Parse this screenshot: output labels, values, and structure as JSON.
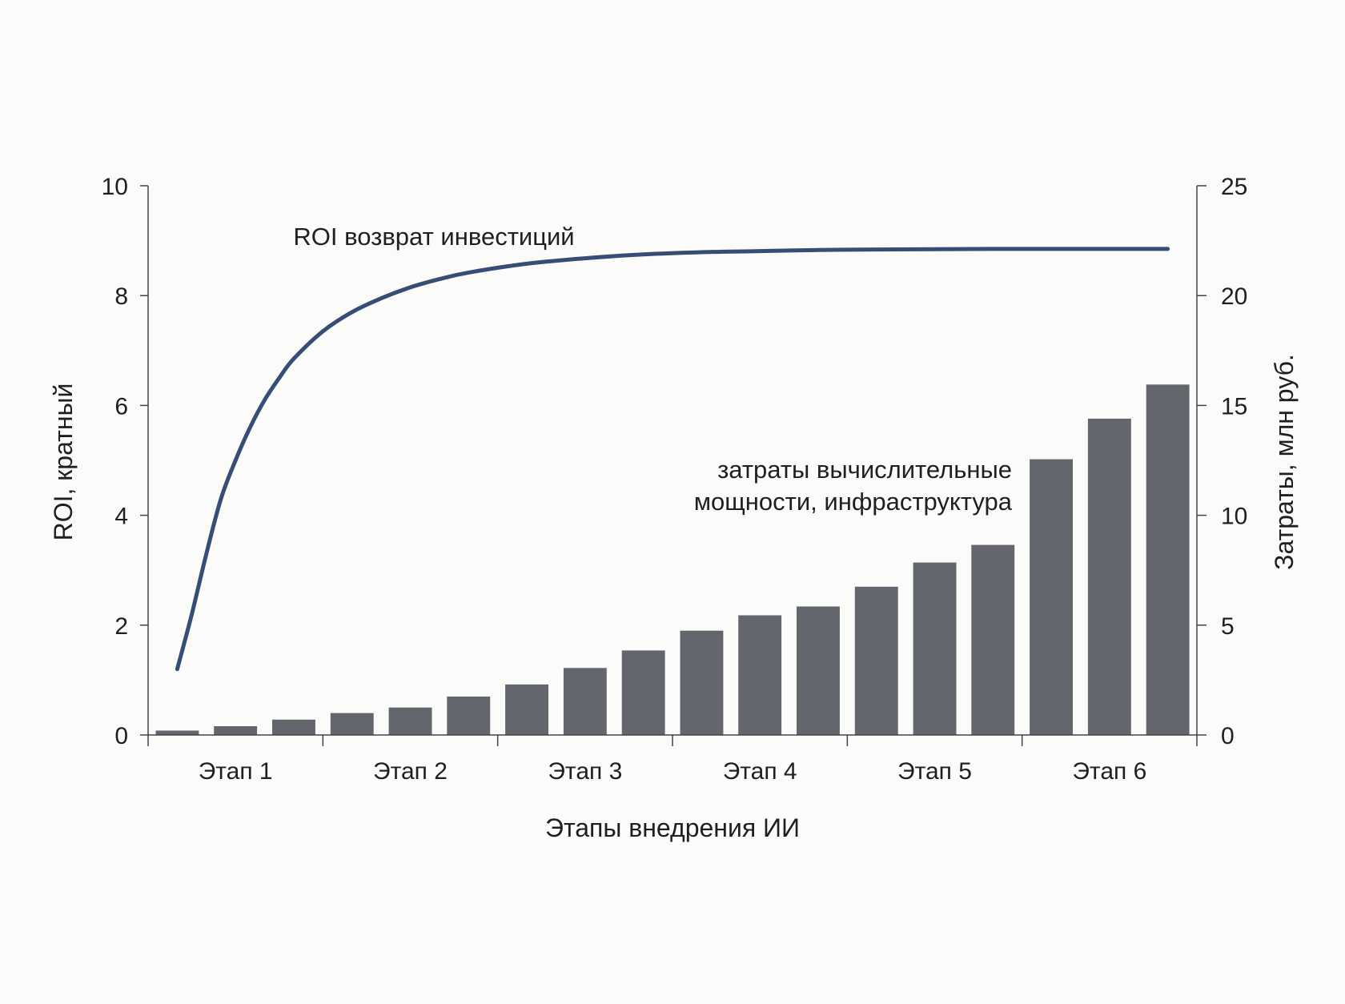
{
  "chart_data": {
    "type": "bar+line",
    "title": "",
    "xlabel": "Этапы внедрения ИИ",
    "categories": [
      "Этап 1",
      "Этап 2",
      "Этап 3",
      "Этап 4",
      "Этап 5",
      "Этап 6"
    ],
    "ylabel_left": "ROI, кратный",
    "ylabel_right": "Затраты, млн руб.",
    "ylim_left": [
      0,
      10
    ],
    "ylim_right": [
      0,
      25
    ],
    "yticks_left": [
      "0",
      "2",
      "4",
      "6",
      "8",
      "10"
    ],
    "yticks_right": [
      "0",
      "5",
      "10",
      "15",
      "20",
      "25"
    ],
    "grid": false,
    "bars": {
      "axis": "right",
      "label_lines": [
        "затраты вычислительные",
        "мощности, инфраструктура"
      ],
      "color": "#63676d",
      "values": [
        0.2,
        0.4,
        0.7,
        1.0,
        1.25,
        1.75,
        2.3,
        3.05,
        3.85,
        4.75,
        5.45,
        5.85,
        6.75,
        7.85,
        8.65,
        12.55,
        14.4,
        15.95
      ]
    },
    "line": {
      "axis": "left",
      "label": "ROI возврат инвестиций",
      "color": "#364d75",
      "points": [
        [
          0.0,
          1.2
        ],
        [
          0.25,
          2.2
        ],
        [
          0.5,
          3.3
        ],
        [
          0.75,
          4.3
        ],
        [
          1.0,
          5.0
        ],
        [
          1.25,
          5.6
        ],
        [
          1.5,
          6.1
        ],
        [
          1.75,
          6.5
        ],
        [
          2.0,
          6.85
        ],
        [
          2.5,
          7.35
        ],
        [
          3.0,
          7.7
        ],
        [
          3.5,
          7.95
        ],
        [
          4.0,
          8.15
        ],
        [
          4.5,
          8.3
        ],
        [
          5.0,
          8.42
        ],
        [
          6.0,
          8.58
        ],
        [
          7.0,
          8.68
        ],
        [
          8.0,
          8.75
        ],
        [
          9.0,
          8.79
        ],
        [
          10.0,
          8.81
        ],
        [
          11.0,
          8.83
        ],
        [
          12.0,
          8.84
        ],
        [
          14.0,
          8.85
        ],
        [
          17.0,
          8.85
        ]
      ]
    }
  }
}
